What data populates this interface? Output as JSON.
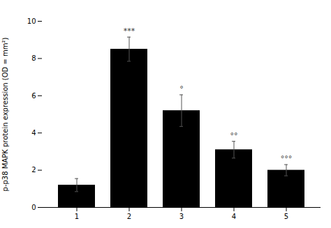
{
  "chart_data": {
    "type": "bar",
    "categories": [
      "1",
      "2",
      "3",
      "4",
      "5"
    ],
    "values": [
      1.2,
      8.5,
      5.2,
      3.1,
      2.0
    ],
    "errors": [
      0.35,
      0.65,
      0.85,
      0.45,
      0.3
    ],
    "color": "#000000",
    "ylabel": "p-p38 MAPK protein expression (OD = mm²)",
    "ylim": [
      0,
      10
    ],
    "yticks": [
      0,
      2,
      4,
      6,
      8,
      10
    ],
    "annotations": [
      {
        "category": "2",
        "text": "***"
      },
      {
        "category": "3",
        "text": "°"
      },
      {
        "category": "4",
        "text": "°°"
      },
      {
        "category": "5",
        "text": "°°°"
      }
    ],
    "grid": false
  }
}
